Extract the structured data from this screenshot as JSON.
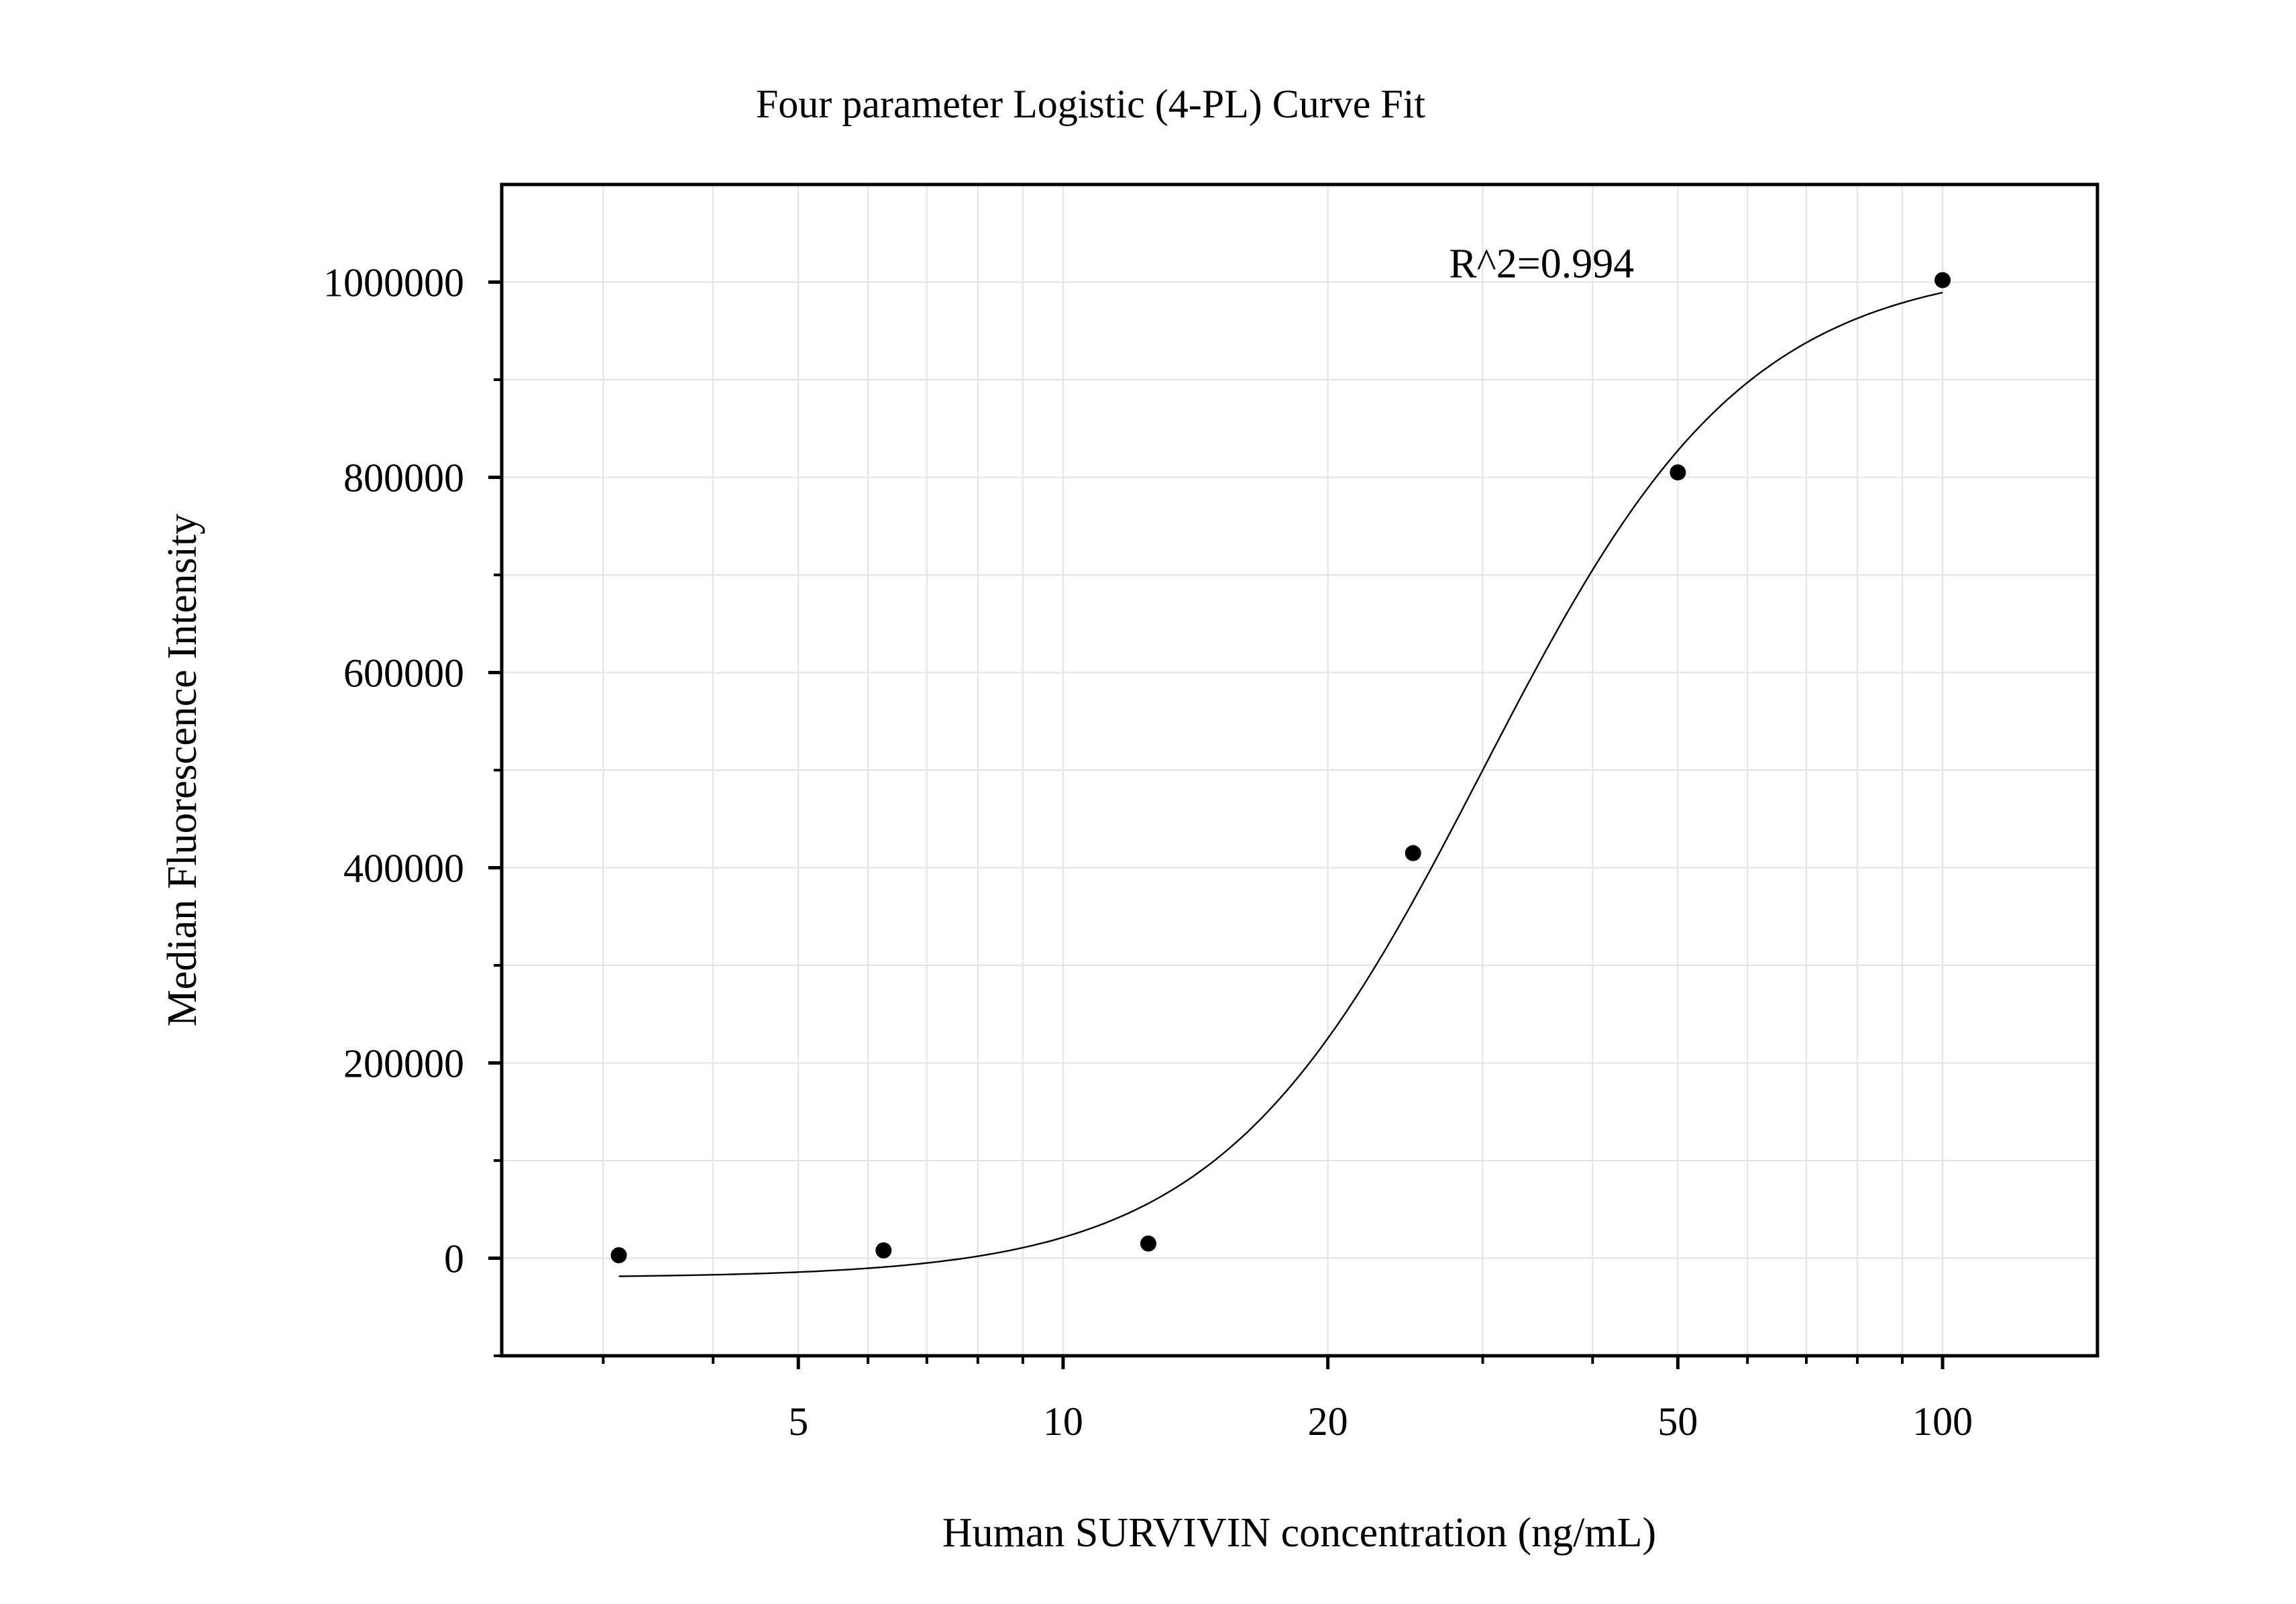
{
  "chart_data": {
    "type": "scatter",
    "title": "Four parameter Logistic (4-PL) Curve Fit",
    "xlabel": "Human SURVIVIN concentration (ng/mL)",
    "ylabel": "Median Fluorescence Intensity",
    "x_scale": "log",
    "xlim": [
      2.3,
      150
    ],
    "ylim": [
      -100000,
      1100000
    ],
    "x_ticks": [
      5,
      10,
      20,
      50,
      100
    ],
    "x_tick_labels": [
      "5",
      "10",
      "20",
      "50",
      "100"
    ],
    "x_minor_ticks": [
      3,
      4,
      6,
      7,
      8,
      9,
      30,
      40,
      60,
      70,
      80,
      90
    ],
    "y_ticks": [
      0,
      200000,
      400000,
      600000,
      800000,
      1000000
    ],
    "y_tick_labels": [
      "0",
      "200000",
      "400000",
      "600000",
      "800000",
      "1000000"
    ],
    "y_minor_ticks": [
      -100000,
      100000,
      300000,
      500000,
      700000,
      900000
    ],
    "grid": true,
    "series": [
      {
        "kind": "points",
        "color": "#000000",
        "x": [
          3.125,
          6.25,
          12.5,
          25,
          50,
          100
        ],
        "y": [
          3000,
          8000,
          15000,
          415000,
          805000,
          1002000
        ]
      },
      {
        "kind": "fit-curve",
        "color": "#000000",
        "model": "4PL",
        "params": {
          "bottom": -20000,
          "top": 1020000,
          "ec50": 30,
          "hill": 2.9
        },
        "x_range": [
          3.125,
          100
        ]
      }
    ],
    "annotations": [
      {
        "text": "R^2=0.994",
        "x": 35,
        "y": 1020000
      }
    ]
  }
}
